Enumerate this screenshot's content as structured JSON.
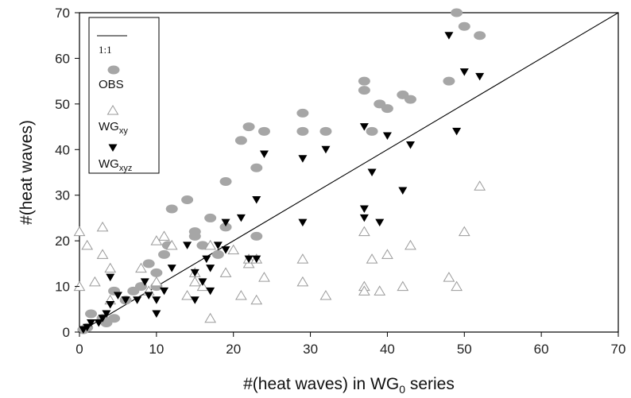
{
  "chart_data": {
    "type": "scatter",
    "xlabel_main": "#(heat waves) in WG",
    "xlabel_sub": "0",
    "xlabel_tail": " series",
    "ylabel": "#(heat waves)",
    "xlim": [
      0,
      70
    ],
    "ylim": [
      0,
      70
    ],
    "xticks": [
      0,
      10,
      20,
      30,
      40,
      50,
      60,
      70
    ],
    "yticks": [
      0,
      10,
      20,
      30,
      40,
      50,
      60,
      70
    ],
    "grid": false,
    "legend_position": "top-left",
    "reference_line": {
      "label": "1:1",
      "from": [
        0,
        0
      ],
      "to": [
        70,
        70
      ]
    },
    "legend": [
      {
        "kind": "line",
        "label": "1:1"
      },
      {
        "kind": "ellipse",
        "label": "OBS"
      },
      {
        "kind": "triangle-up",
        "label_main": "WG",
        "label_sub": "xy"
      },
      {
        "kind": "triangle-down",
        "label_main": "WG",
        "label_sub": "xyz"
      }
    ],
    "colors": {
      "obs": "#a6a6a6",
      "wgxy_stroke": "#9a9a9a",
      "wgxyz": "#000000",
      "line": "#000000"
    },
    "series": [
      {
        "name": "OBS",
        "marker": "ellipse",
        "points": [
          [
            0.5,
            0.5
          ],
          [
            1,
            1
          ],
          [
            1.5,
            4
          ],
          [
            3,
            3
          ],
          [
            3.5,
            2
          ],
          [
            4.5,
            3
          ],
          [
            4.5,
            9
          ],
          [
            6,
            7
          ],
          [
            7,
            9
          ],
          [
            8,
            10
          ],
          [
            9,
            15
          ],
          [
            10,
            13
          ],
          [
            10,
            10
          ],
          [
            11,
            17
          ],
          [
            11.5,
            19
          ],
          [
            12,
            27
          ],
          [
            14,
            29
          ],
          [
            15,
            22
          ],
          [
            15,
            21
          ],
          [
            16,
            19
          ],
          [
            17,
            25
          ],
          [
            18,
            17
          ],
          [
            19,
            33
          ],
          [
            19,
            23
          ],
          [
            21,
            42
          ],
          [
            22,
            45
          ],
          [
            23,
            36
          ],
          [
            23,
            21
          ],
          [
            24,
            44
          ],
          [
            29,
            48
          ],
          [
            29,
            44
          ],
          [
            32,
            44
          ],
          [
            37,
            55
          ],
          [
            37,
            53
          ],
          [
            38,
            44
          ],
          [
            39,
            50
          ],
          [
            40,
            49
          ],
          [
            42,
            52
          ],
          [
            43,
            51
          ],
          [
            48,
            55
          ],
          [
            49,
            70
          ],
          [
            50,
            67
          ],
          [
            52,
            65
          ]
        ]
      },
      {
        "name": "WGxy",
        "marker": "triangle-up",
        "points": [
          [
            0,
            22
          ],
          [
            0,
            10
          ],
          [
            1,
            19
          ],
          [
            2,
            11
          ],
          [
            3,
            23
          ],
          [
            3,
            17
          ],
          [
            4,
            14
          ],
          [
            4,
            7
          ],
          [
            8,
            14
          ],
          [
            9,
            9
          ],
          [
            10,
            20
          ],
          [
            10,
            11
          ],
          [
            11,
            21
          ],
          [
            12,
            19
          ],
          [
            14,
            8
          ],
          [
            15,
            13
          ],
          [
            15,
            11
          ],
          [
            16,
            10
          ],
          [
            17,
            3
          ],
          [
            17,
            19
          ],
          [
            19,
            13
          ],
          [
            20,
            18
          ],
          [
            21,
            8
          ],
          [
            22,
            15
          ],
          [
            22,
            16
          ],
          [
            23,
            7
          ],
          [
            23,
            16
          ],
          [
            24,
            12
          ],
          [
            29,
            16
          ],
          [
            29,
            11
          ],
          [
            32,
            8
          ],
          [
            37,
            22
          ],
          [
            37,
            10
          ],
          [
            37,
            9
          ],
          [
            38,
            16
          ],
          [
            39,
            9
          ],
          [
            40,
            17
          ],
          [
            42,
            10
          ],
          [
            43,
            19
          ],
          [
            48,
            12
          ],
          [
            49,
            10
          ],
          [
            50,
            22
          ],
          [
            52,
            32
          ]
        ]
      },
      {
        "name": "WGxyz",
        "marker": "triangle-down",
        "points": [
          [
            0.5,
            0.5
          ],
          [
            1,
            1
          ],
          [
            1.5,
            2
          ],
          [
            2.5,
            2
          ],
          [
            3,
            3
          ],
          [
            3.5,
            4
          ],
          [
            4,
            12
          ],
          [
            4,
            6
          ],
          [
            5,
            8
          ],
          [
            6,
            7
          ],
          [
            7.5,
            7
          ],
          [
            8.5,
            11
          ],
          [
            9,
            8
          ],
          [
            10,
            7
          ],
          [
            10,
            4
          ],
          [
            11,
            9
          ],
          [
            12,
            14
          ],
          [
            14,
            19
          ],
          [
            15,
            7
          ],
          [
            15,
            13
          ],
          [
            16,
            11
          ],
          [
            16.5,
            16
          ],
          [
            17,
            9
          ],
          [
            17,
            14
          ],
          [
            18,
            19
          ],
          [
            19,
            24
          ],
          [
            19,
            18
          ],
          [
            21,
            25
          ],
          [
            22,
            16
          ],
          [
            23,
            16
          ],
          [
            23,
            29
          ],
          [
            24,
            39
          ],
          [
            29,
            38
          ],
          [
            29,
            24
          ],
          [
            32,
            40
          ],
          [
            37,
            45
          ],
          [
            37,
            27
          ],
          [
            37,
            25
          ],
          [
            38,
            35
          ],
          [
            39,
            24
          ],
          [
            40,
            43
          ],
          [
            42,
            31
          ],
          [
            43,
            41
          ],
          [
            48,
            65
          ],
          [
            49,
            44
          ],
          [
            50,
            57
          ],
          [
            52,
            56
          ]
        ]
      }
    ]
  }
}
